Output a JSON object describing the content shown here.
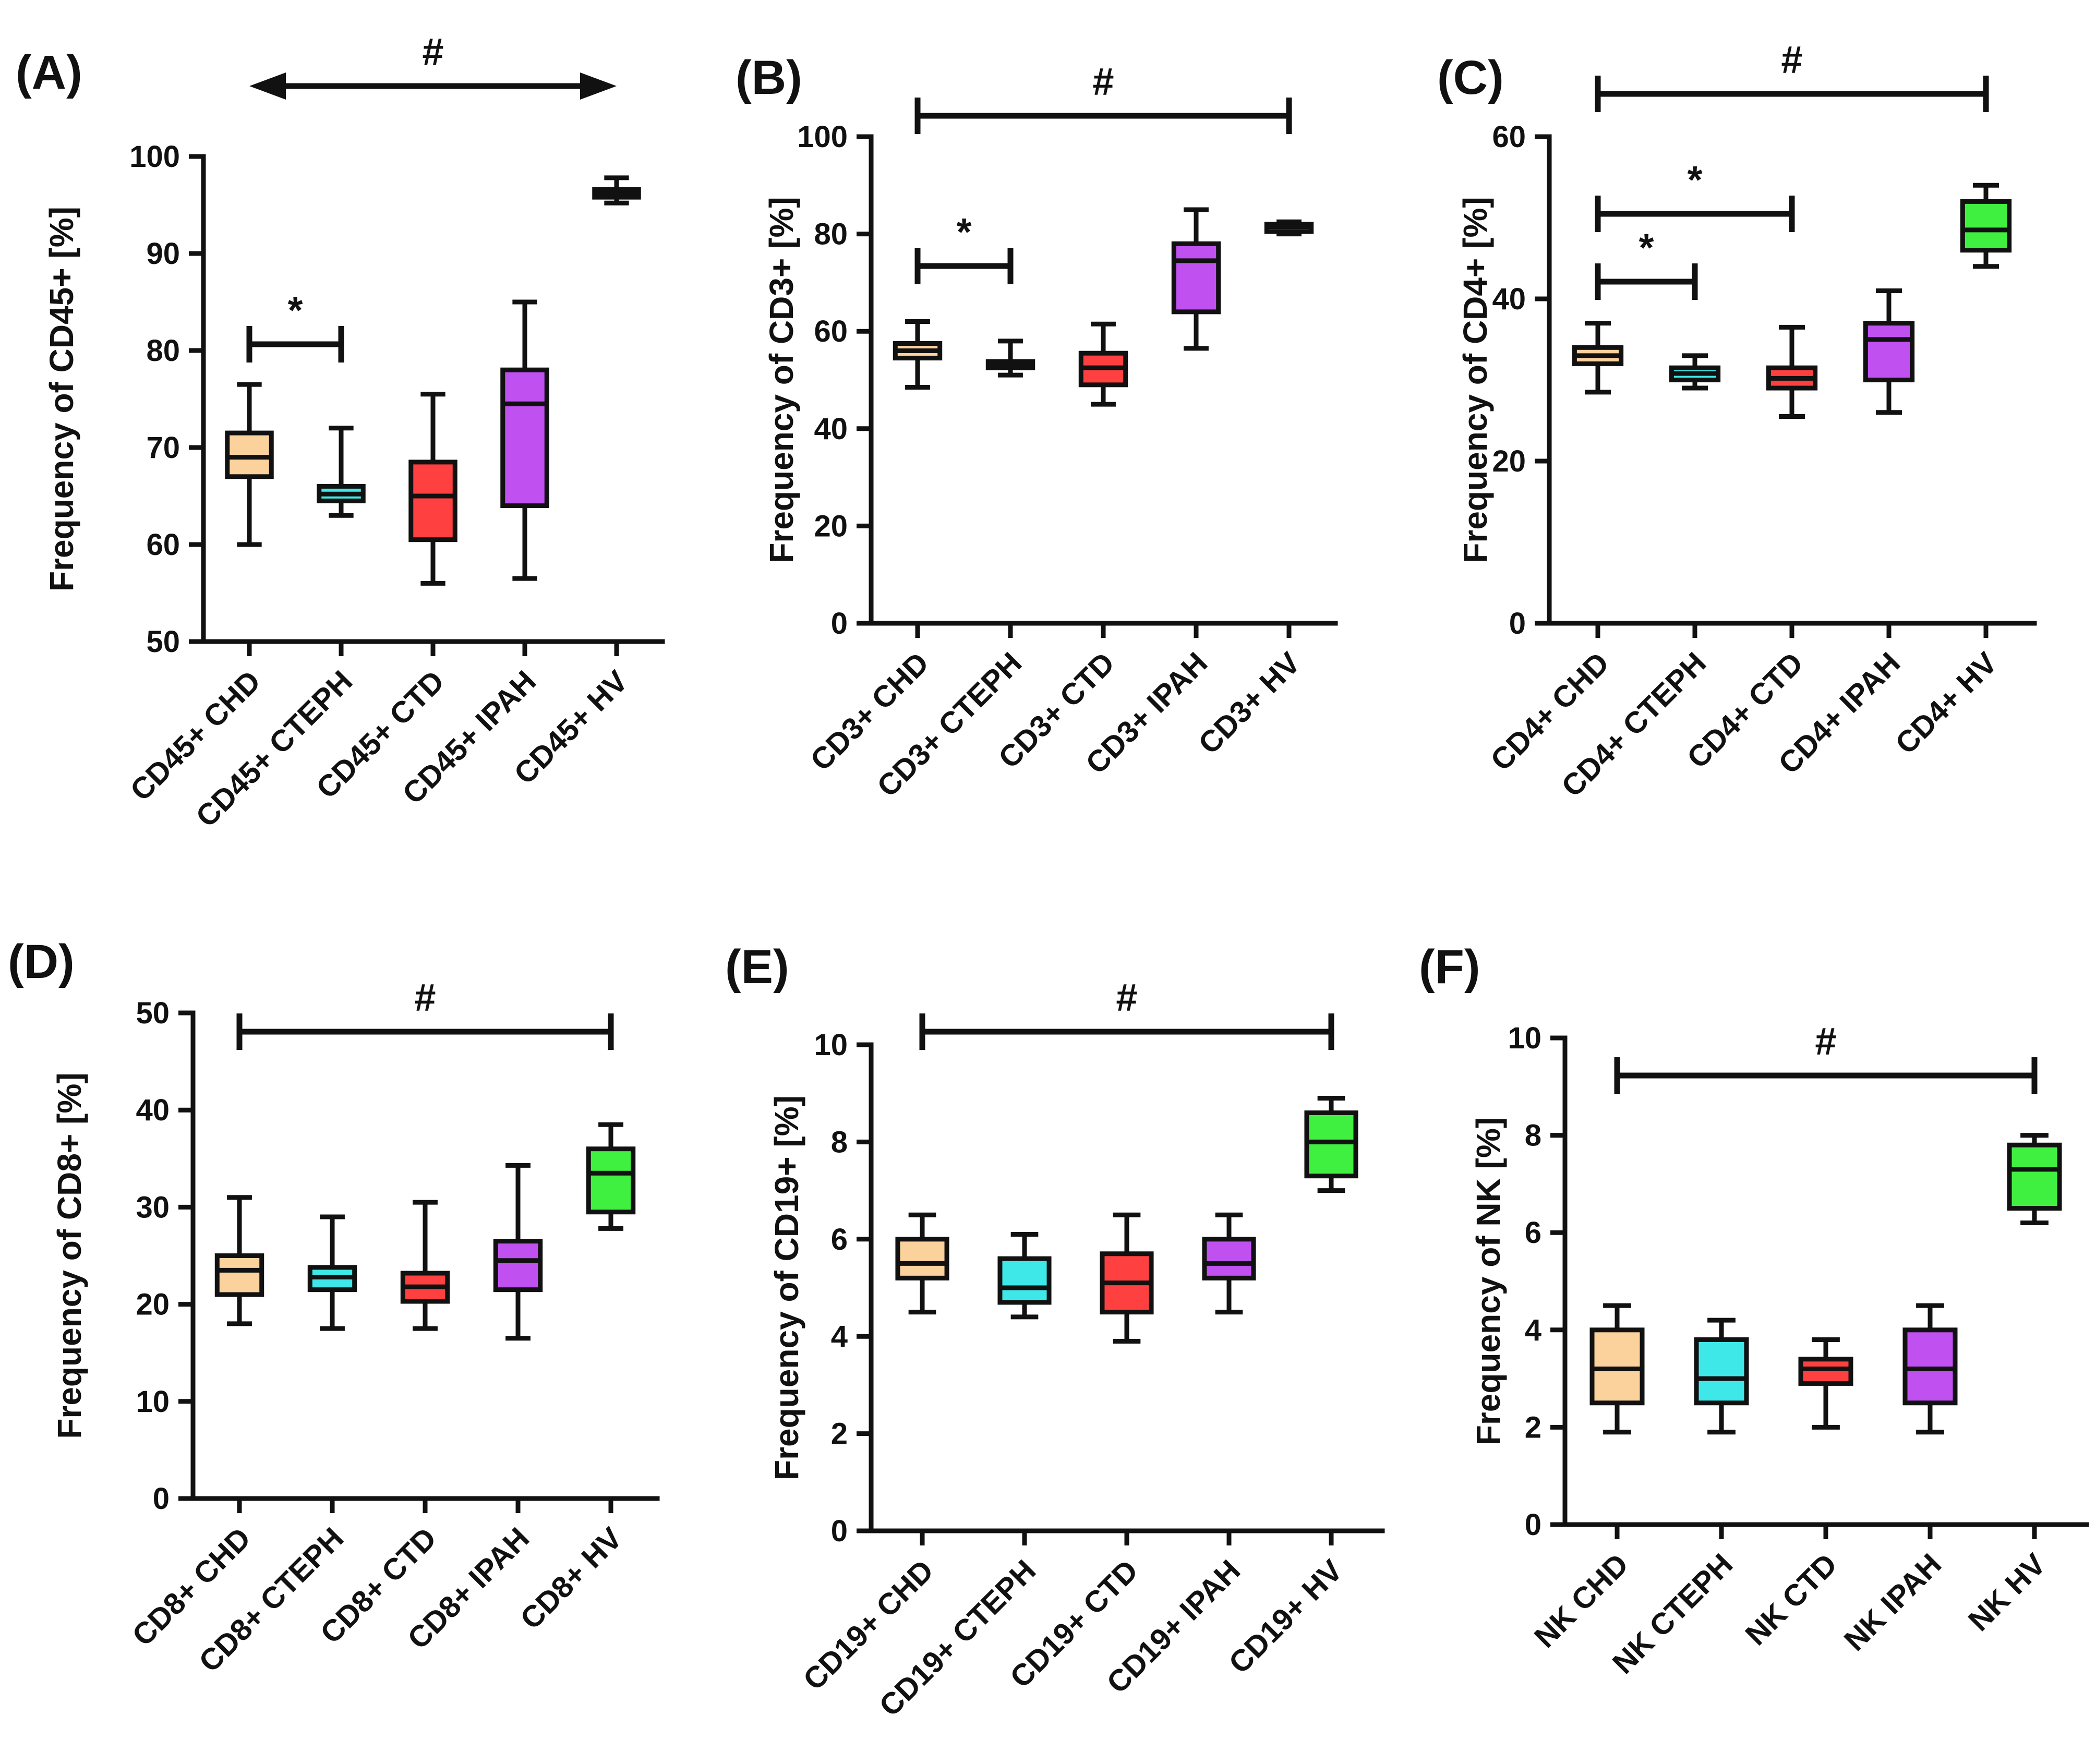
{
  "chart_data": [
    {
      "type": "box",
      "panel": "(A)",
      "ylabel": "Frequency of CD45+ [%]",
      "ylim": [
        50,
        100
      ],
      "yticks": [
        50,
        60,
        70,
        80,
        90,
        100
      ],
      "categories": [
        "CD45+ CHD",
        "CD45+ CTEPH",
        "CD45+ CTD",
        "CD45+ IPAH",
        "CD45+ HV"
      ],
      "boxes": [
        {
          "min": 60,
          "q1": 67,
          "median": 69,
          "q3": 71.5,
          "max": 76.5,
          "color": "#FBD19C"
        },
        {
          "min": 63,
          "q1": 64.5,
          "median": 65.2,
          "q3": 66,
          "max": 72,
          "color": "#3FE8E8"
        },
        {
          "min": 56,
          "q1": 60.5,
          "median": 65,
          "q3": 68.5,
          "max": 75.5,
          "color": "#FF4040"
        },
        {
          "min": 56.5,
          "q1": 64,
          "median": 74.5,
          "q3": 78,
          "max": 85,
          "color": "#C050F0"
        },
        {
          "min": 95.2,
          "q1": 95.8,
          "median": 96.2,
          "q3": 96.6,
          "max": 97.8,
          "color": "#40F040"
        }
      ],
      "annotations": [
        {
          "symbol": "#",
          "from": 0,
          "to": 4,
          "style": "arrow"
        },
        {
          "symbol": "*",
          "from": 0,
          "to": 1,
          "style": "bracket"
        }
      ]
    },
    {
      "type": "box",
      "panel": "(B)",
      "ylabel": "Frequency of CD3+ [%]",
      "ylim": [
        0,
        100
      ],
      "yticks": [
        0,
        20,
        40,
        60,
        80,
        100
      ],
      "categories": [
        "CD3+ CHD",
        "CD3+ CTEPH",
        "CD3+ CTD",
        "CD3+ IPAH",
        "CD3+ HV"
      ],
      "boxes": [
        {
          "min": 48.5,
          "q1": 54.5,
          "median": 56,
          "q3": 57.5,
          "max": 62,
          "color": "#FBD19C"
        },
        {
          "min": 51,
          "q1": 52.5,
          "median": 53,
          "q3": 53.8,
          "max": 58,
          "color": "#3FE8E8"
        },
        {
          "min": 45,
          "q1": 49,
          "median": 52.5,
          "q3": 55.5,
          "max": 61.5,
          "color": "#FF4040"
        },
        {
          "min": 56.5,
          "q1": 64,
          "median": 74.5,
          "q3": 78,
          "max": 85,
          "color": "#C050F0"
        },
        {
          "min": 80,
          "q1": 80.5,
          "median": 81.5,
          "q3": 82,
          "max": 82.5,
          "color": "#40F040"
        }
      ],
      "annotations": [
        {
          "symbol": "#",
          "from": 0,
          "to": 4,
          "style": "bracket"
        },
        {
          "symbol": "*",
          "from": 0,
          "to": 1,
          "style": "bracket"
        }
      ]
    },
    {
      "type": "box",
      "panel": "(C)",
      "ylabel": "Frequency of CD4+ [%]",
      "ylim": [
        0,
        60
      ],
      "yticks": [
        0,
        20,
        40,
        60
      ],
      "categories": [
        "CD4+ CHD",
        "CD4+ CTEPH",
        "CD4+ CTD",
        "CD4+ IPAH",
        "CD4+ HV"
      ],
      "boxes": [
        {
          "min": 28.5,
          "q1": 32,
          "median": 33,
          "q3": 34,
          "max": 37,
          "color": "#FBD19C"
        },
        {
          "min": 29,
          "q1": 30,
          "median": 30.8,
          "q3": 31.5,
          "max": 33,
          "color": "#3FE8E8"
        },
        {
          "min": 25.5,
          "q1": 29,
          "median": 30.2,
          "q3": 31.5,
          "max": 36.5,
          "color": "#FF4040"
        },
        {
          "min": 26,
          "q1": 30,
          "median": 35,
          "q3": 37,
          "max": 41,
          "color": "#C050F0"
        },
        {
          "min": 44,
          "q1": 46,
          "median": 48.5,
          "q3": 52,
          "max": 54,
          "color": "#40F040"
        }
      ],
      "annotations": [
        {
          "symbol": "#",
          "from": 0,
          "to": 4,
          "style": "bracket"
        },
        {
          "symbol": "*",
          "from": 0,
          "to": 2,
          "style": "bracket"
        },
        {
          "symbol": "*",
          "from": 0,
          "to": 1,
          "style": "bracket"
        }
      ]
    },
    {
      "type": "box",
      "panel": "(D)",
      "ylabel": "Frequency of CD8+ [%]",
      "ylim": [
        0,
        50
      ],
      "yticks": [
        0,
        10,
        20,
        30,
        40,
        50
      ],
      "categories": [
        "CD8+ CHD",
        "CD8+ CTEPH",
        "CD8+ CTD",
        "CD8+ IPAH",
        "CD8+ HV"
      ],
      "boxes": [
        {
          "min": 18,
          "q1": 21,
          "median": 23.5,
          "q3": 25,
          "max": 31,
          "color": "#FBD19C"
        },
        {
          "min": 17.5,
          "q1": 21.5,
          "median": 22.8,
          "q3": 23.8,
          "max": 29,
          "color": "#3FE8E8"
        },
        {
          "min": 17.5,
          "q1": 20.3,
          "median": 21.8,
          "q3": 23.2,
          "max": 30.5,
          "color": "#FF4040"
        },
        {
          "min": 16.5,
          "q1": 21.5,
          "median": 24.5,
          "q3": 26.5,
          "max": 34.3,
          "color": "#C050F0"
        },
        {
          "min": 27.8,
          "q1": 29.5,
          "median": 33.5,
          "q3": 36,
          "max": 38.5,
          "color": "#40F040"
        }
      ],
      "annotations": [
        {
          "symbol": "#",
          "from": 0,
          "to": 4,
          "style": "bracket"
        }
      ]
    },
    {
      "type": "box",
      "panel": "(E)",
      "ylabel": "Frequency of CD19+ [%]",
      "ylim": [
        0,
        10
      ],
      "yticks": [
        0,
        2,
        4,
        6,
        8,
        10
      ],
      "categories": [
        "CD19+ CHD",
        "CD19+ CTEPH",
        "CD19+ CTD",
        "CD19+ IPAH",
        "CD19+ HV"
      ],
      "boxes": [
        {
          "min": 4.5,
          "q1": 5.2,
          "median": 5.5,
          "q3": 6,
          "max": 6.5,
          "color": "#FBD19C"
        },
        {
          "min": 4.4,
          "q1": 4.7,
          "median": 5,
          "q3": 5.6,
          "max": 6.1,
          "color": "#3FE8E8"
        },
        {
          "min": 3.9,
          "q1": 4.5,
          "median": 5.1,
          "q3": 5.7,
          "max": 6.5,
          "color": "#FF4040"
        },
        {
          "min": 4.5,
          "q1": 5.2,
          "median": 5.5,
          "q3": 6,
          "max": 6.5,
          "color": "#C050F0"
        },
        {
          "min": 7,
          "q1": 7.3,
          "median": 8,
          "q3": 8.6,
          "max": 8.9,
          "color": "#40F040"
        }
      ],
      "annotations": [
        {
          "symbol": "#",
          "from": 0,
          "to": 4,
          "style": "bracket"
        }
      ]
    },
    {
      "type": "box",
      "panel": "(F)",
      "ylabel": "Frequency of NK [%]",
      "ylim": [
        0,
        10
      ],
      "yticks": [
        0,
        2,
        4,
        6,
        8,
        10
      ],
      "categories": [
        "NK CHD",
        "NK CTEPH",
        "NK CTD",
        "NK IPAH",
        "NK HV"
      ],
      "boxes": [
        {
          "min": 1.9,
          "q1": 2.5,
          "median": 3.2,
          "q3": 4,
          "max": 4.5,
          "color": "#FBD19C"
        },
        {
          "min": 1.9,
          "q1": 2.5,
          "median": 3,
          "q3": 3.8,
          "max": 4.2,
          "color": "#3FE8E8"
        },
        {
          "min": 2,
          "q1": 2.9,
          "median": 3.2,
          "q3": 3.4,
          "max": 3.8,
          "color": "#FF4040"
        },
        {
          "min": 1.9,
          "q1": 2.5,
          "median": 3.2,
          "q3": 4,
          "max": 4.5,
          "color": "#C050F0"
        },
        {
          "min": 6.2,
          "q1": 6.5,
          "median": 7.3,
          "q3": 7.8,
          "max": 8,
          "color": "#40F040"
        }
      ],
      "annotations": [
        {
          "symbol": "#",
          "from": 0,
          "to": 4,
          "style": "bracket"
        }
      ]
    }
  ]
}
